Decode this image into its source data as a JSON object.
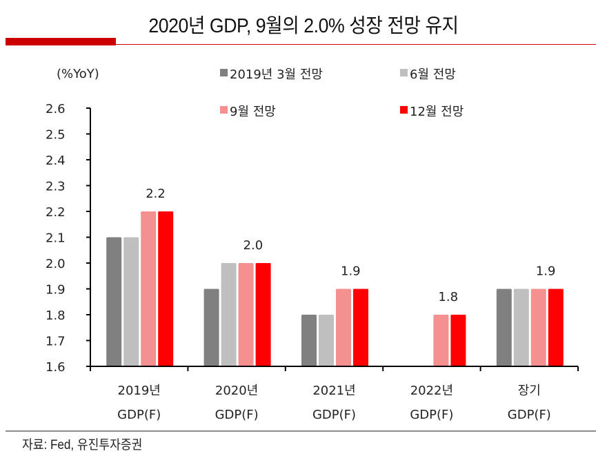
{
  "header": {
    "title": "2020년 GDP, 9월의 2.0% 성장 전망 유지"
  },
  "footer": {
    "source": "자료: Fed, 유진투자증권"
  },
  "chart_data": {
    "type": "bar",
    "title": "2020년 GDP, 9월의 2.0% 성장 전망 유지",
    "ylabel": "(%YoY)",
    "xlabel": "",
    "ylim": [
      1.6,
      2.6
    ],
    "yticks": [
      "1.6",
      "1.7",
      "1.8",
      "1.9",
      "2.0",
      "2.1",
      "2.2",
      "2.3",
      "2.4",
      "2.5",
      "2.6"
    ],
    "grid": false,
    "legend_position": "top-right",
    "categories": [
      [
        "2019년",
        "GDP(F)"
      ],
      [
        "2020년",
        "GDP(F)"
      ],
      [
        "2021년",
        "GDP(F)"
      ],
      [
        "2022년",
        "GDP(F)"
      ],
      [
        "장기",
        "GDP(F)"
      ]
    ],
    "series": [
      {
        "name": "2019년 3월 전망",
        "color": "#808080",
        "values": [
          2.1,
          1.9,
          1.8,
          null,
          1.9
        ]
      },
      {
        "name": "6월 전망",
        "color": "#bfbfbf",
        "values": [
          2.1,
          2.0,
          1.8,
          null,
          1.9
        ]
      },
      {
        "name": "9월 전망",
        "color": "#f49090",
        "values": [
          2.2,
          2.0,
          1.9,
          1.8,
          1.9
        ]
      },
      {
        "name": "12월 전망",
        "color": "#ff0000",
        "values": [
          2.2,
          2.0,
          1.9,
          1.8,
          1.9
        ]
      }
    ],
    "data_labels": [
      "2.2",
      "2.0",
      "1.9",
      "1.8",
      "1.9"
    ]
  }
}
